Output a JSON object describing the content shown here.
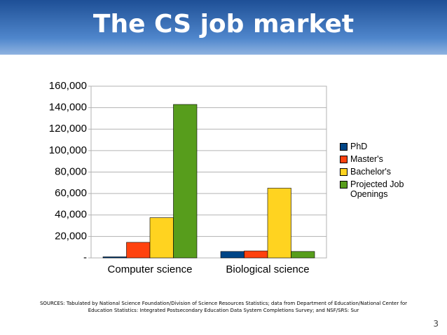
{
  "title": "The CS job market",
  "chart_data": {
    "type": "bar",
    "categories": [
      "Computer science",
      "Biological science"
    ],
    "series": [
      {
        "name": "PhD",
        "color": "#004586",
        "values": [
          1000,
          6000
        ]
      },
      {
        "name": "Master's",
        "color": "#ff420e",
        "values": [
          14500,
          6500
        ]
      },
      {
        "name": "Bachelor's",
        "color": "#ffd320",
        "values": [
          37500,
          65000
        ]
      },
      {
        "name": "Projected Job Openings",
        "color": "#579d1c",
        "values": [
          143000,
          6000
        ]
      }
    ],
    "ylim": [
      0,
      160000
    ],
    "yticks": [
      {
        "value": 0,
        "label": "-"
      },
      {
        "value": 20000,
        "label": "20,000"
      },
      {
        "value": 40000,
        "label": "40,000"
      },
      {
        "value": 60000,
        "label": "60,000"
      },
      {
        "value": 80000,
        "label": "80,000"
      },
      {
        "value": 100000,
        "label": "100,000"
      },
      {
        "value": 120000,
        "label": "120,000"
      },
      {
        "value": 140000,
        "label": "140,000"
      },
      {
        "value": 160000,
        "label": "160,000"
      }
    ],
    "grid": true,
    "legend": "right"
  },
  "sources": "SOURCES: Tabulated by National Science Foundation/Division of Science Resources Statistics; data from Department of Education/National Center for Education Statistics: Integrated Postsecondary Education Data System Completions Survey; and NSF/SRS: Sur",
  "page_number": "3"
}
